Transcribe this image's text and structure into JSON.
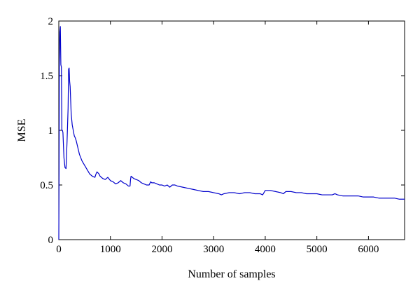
{
  "chart_data": {
    "type": "line",
    "title": "",
    "xlabel": "Number of samples",
    "ylabel": "MSE",
    "xlim": [
      0,
      6700
    ],
    "ylim": [
      0,
      2
    ],
    "xticks": [
      0,
      1000,
      2000,
      3000,
      4000,
      5000,
      6000
    ],
    "yticks": [
      0,
      0.5,
      1,
      1.5,
      2
    ],
    "ytick_labels": [
      "0",
      "0.5",
      "1",
      "1.5",
      "2"
    ],
    "grid": false,
    "legend": "none",
    "series": [
      {
        "color": "#0000cc",
        "x": [
          0,
          5,
          10,
          20,
          30,
          40,
          50,
          60,
          70,
          80,
          100,
          120,
          140,
          160,
          180,
          190,
          200,
          210,
          220,
          240,
          260,
          280,
          300,
          320,
          340,
          360,
          380,
          400,
          450,
          500,
          550,
          600,
          650,
          700,
          720,
          740,
          760,
          780,
          800,
          850,
          900,
          950,
          1000,
          1050,
          1100,
          1150,
          1200,
          1250,
          1300,
          1350,
          1380,
          1390,
          1400,
          1450,
          1500,
          1550,
          1600,
          1650,
          1700,
          1750,
          1780,
          1800,
          1850,
          1900,
          1950,
          2000,
          2050,
          2100,
          2150,
          2200,
          2250,
          2300,
          2400,
          2500,
          2600,
          2700,
          2800,
          2900,
          3000,
          3100,
          3150,
          3200,
          3300,
          3400,
          3500,
          3600,
          3700,
          3800,
          3900,
          3950,
          4000,
          4100,
          4200,
          4300,
          4350,
          4400,
          4500,
          4600,
          4700,
          4800,
          4900,
          5000,
          5100,
          5200,
          5300,
          5350,
          5400,
          5500,
          5600,
          5700,
          5800,
          5900,
          6000,
          6100,
          6200,
          6300,
          6400,
          6500,
          6600,
          6700
        ],
        "y": [
          0.0,
          0.6,
          1.6,
          1.9,
          1.95,
          1.6,
          1.58,
          1.0,
          1.0,
          0.98,
          0.75,
          0.66,
          0.65,
          0.9,
          1.2,
          1.56,
          1.57,
          1.45,
          1.4,
          1.15,
          1.05,
          1.0,
          0.95,
          0.93,
          0.9,
          0.86,
          0.82,
          0.78,
          0.72,
          0.68,
          0.64,
          0.6,
          0.58,
          0.57,
          0.6,
          0.62,
          0.61,
          0.6,
          0.58,
          0.56,
          0.55,
          0.57,
          0.54,
          0.53,
          0.51,
          0.52,
          0.54,
          0.52,
          0.51,
          0.49,
          0.49,
          0.55,
          0.58,
          0.56,
          0.55,
          0.54,
          0.52,
          0.51,
          0.5,
          0.5,
          0.53,
          0.52,
          0.52,
          0.51,
          0.5,
          0.5,
          0.49,
          0.5,
          0.48,
          0.5,
          0.5,
          0.49,
          0.48,
          0.47,
          0.46,
          0.45,
          0.44,
          0.44,
          0.43,
          0.42,
          0.41,
          0.42,
          0.43,
          0.43,
          0.42,
          0.43,
          0.43,
          0.42,
          0.42,
          0.41,
          0.45,
          0.45,
          0.44,
          0.43,
          0.42,
          0.44,
          0.44,
          0.43,
          0.43,
          0.42,
          0.42,
          0.42,
          0.41,
          0.41,
          0.41,
          0.42,
          0.41,
          0.4,
          0.4,
          0.4,
          0.4,
          0.39,
          0.39,
          0.39,
          0.38,
          0.38,
          0.38,
          0.38,
          0.37,
          0.37
        ]
      }
    ]
  }
}
